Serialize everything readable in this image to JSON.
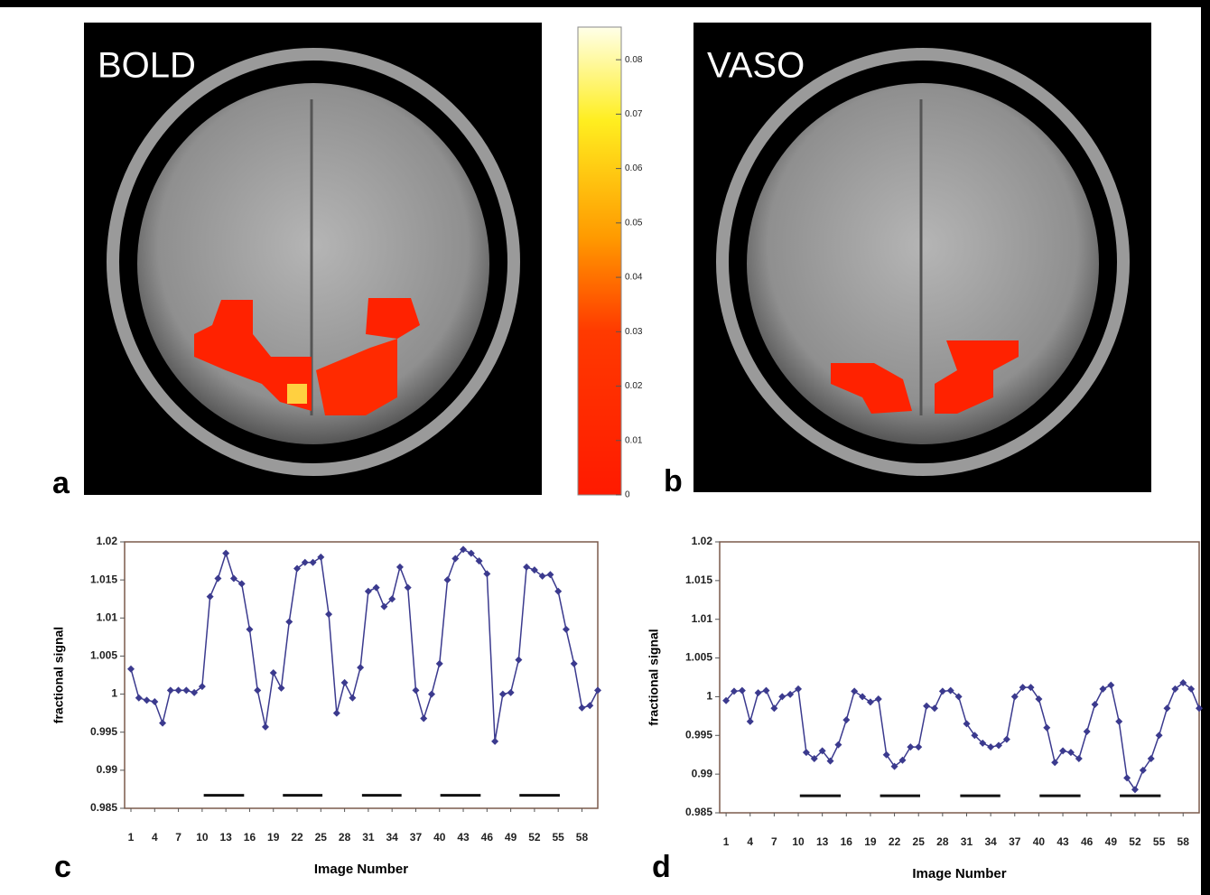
{
  "panels": {
    "a": {
      "label": "a",
      "title": "BOLD"
    },
    "b": {
      "label": "b",
      "title": "VASO"
    },
    "c": {
      "label": "c"
    },
    "d": {
      "label": "d"
    }
  },
  "colorbar": {
    "lim": [
      0,
      0.086
    ],
    "ticks": [
      0,
      0.01,
      0.02,
      0.03,
      0.04,
      0.05,
      0.06,
      0.07,
      0.08
    ]
  },
  "chart_data": [
    {
      "type": "line",
      "xlabel": "Image Number",
      "ylabel": "fractional signal",
      "color": "#3b3a8e",
      "x": [
        1,
        2,
        3,
        4,
        5,
        6,
        7,
        8,
        9,
        10,
        11,
        12,
        13,
        14,
        15,
        16,
        17,
        18,
        19,
        20,
        21,
        22,
        23,
        24,
        25,
        26,
        27,
        28,
        29,
        30,
        31,
        32,
        33,
        34,
        35,
        36,
        37,
        38,
        39,
        40,
        41,
        42,
        43,
        44,
        45,
        46,
        47,
        48,
        49,
        50,
        51,
        52,
        53,
        54,
        55,
        56,
        57,
        58,
        59,
        60
      ],
      "values": [
        1.0033,
        0.9995,
        0.9992,
        0.999,
        0.9962,
        1.0005,
        1.0005,
        1.0005,
        1.0002,
        1.001,
        1.0128,
        1.0152,
        1.0185,
        1.0152,
        1.0145,
        1.0085,
        1.0005,
        0.9957,
        1.0028,
        1.0008,
        1.0095,
        1.0165,
        1.0173,
        1.0173,
        1.018,
        1.0105,
        0.9975,
        1.0015,
        0.9995,
        1.0035,
        1.0135,
        1.014,
        1.0115,
        1.0125,
        1.0167,
        1.014,
        1.0005,
        0.9968,
        1.0,
        1.004,
        1.015,
        1.0178,
        1.019,
        1.0185,
        1.0175,
        1.0158,
        0.9938,
        1.0,
        1.0002,
        1.0045,
        1.0167,
        1.0163,
        1.0155,
        1.0157,
        1.0135,
        1.0085,
        1.004,
        0.9982,
        0.9985,
        1.0005
      ],
      "xlim": [
        0.2,
        60
      ],
      "xticks": [
        1,
        4,
        7,
        10,
        13,
        16,
        19,
        22,
        25,
        28,
        31,
        34,
        37,
        40,
        43,
        46,
        49,
        52,
        55,
        58
      ],
      "ylim": [
        0.985,
        1.02
      ],
      "yticks": [
        0.985,
        0.99,
        0.995,
        1,
        1.005,
        1.01,
        1.015,
        1.02
      ],
      "stimulus": {
        "level": 0.9867,
        "ranges": [
          [
            10.2,
            15.3
          ],
          [
            20.2,
            25.2
          ],
          [
            30.2,
            35.2
          ],
          [
            40.1,
            45.2
          ],
          [
            50.1,
            55.2
          ]
        ]
      }
    },
    {
      "type": "line",
      "xlabel": "Image Number",
      "ylabel": "fractional signal",
      "color": "#3b3a8e",
      "x": [
        1,
        2,
        3,
        4,
        5,
        6,
        7,
        8,
        9,
        10,
        11,
        12,
        13,
        14,
        15,
        16,
        17,
        18,
        19,
        20,
        21,
        22,
        23,
        24,
        25,
        26,
        27,
        28,
        29,
        30,
        31,
        32,
        33,
        34,
        35,
        36,
        37,
        38,
        39,
        40,
        41,
        42,
        43,
        44,
        45,
        46,
        47,
        48,
        49,
        50,
        51,
        52,
        53,
        54,
        55,
        56,
        57,
        58,
        59,
        60
      ],
      "values": [
        0.9995,
        1.0007,
        1.0008,
        0.9968,
        1.0005,
        1.0008,
        0.9985,
        1.0,
        1.0003,
        1.001,
        0.9928,
        0.992,
        0.993,
        0.9917,
        0.9938,
        0.997,
        1.0007,
        1.0,
        0.9993,
        0.9997,
        0.9925,
        0.991,
        0.9918,
        0.9935,
        0.9935,
        0.9988,
        0.9985,
        1.0007,
        1.0008,
        1.0,
        0.9965,
        0.995,
        0.994,
        0.9935,
        0.9937,
        0.9945,
        1.0,
        1.0012,
        1.0012,
        0.9997,
        0.996,
        0.9915,
        0.993,
        0.9928,
        0.992,
        0.9955,
        0.999,
        1.001,
        1.0015,
        0.9968,
        0.9895,
        0.988,
        0.9905,
        0.992,
        0.995,
        0.9985,
        1.001,
        1.0018,
        1.001,
        0.9985
      ],
      "xlim": [
        0.2,
        60
      ],
      "xticks": [
        1,
        4,
        7,
        10,
        13,
        16,
        19,
        22,
        25,
        28,
        31,
        34,
        37,
        40,
        43,
        46,
        49,
        52,
        55,
        58
      ],
      "ylim": [
        0.985,
        1.02
      ],
      "yticks": [
        0.985,
        0.99,
        0.995,
        1,
        1.005,
        1.01,
        1.015,
        1.02
      ],
      "stimulus": {
        "level": 0.9872,
        "ranges": [
          [
            10.2,
            15.3
          ],
          [
            20.2,
            25.2
          ],
          [
            30.2,
            35.2
          ],
          [
            40.1,
            45.2
          ],
          [
            50.1,
            55.2
          ]
        ]
      }
    }
  ]
}
